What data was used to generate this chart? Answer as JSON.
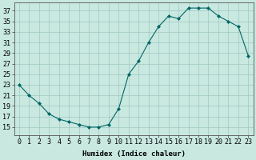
{
  "x": [
    0,
    1,
    2,
    3,
    4,
    5,
    6,
    7,
    8,
    9,
    10,
    11,
    12,
    13,
    14,
    15,
    16,
    17,
    18,
    19,
    20,
    21,
    22,
    23
  ],
  "y": [
    23,
    21,
    19.5,
    17.5,
    16.5,
    16,
    15.5,
    15,
    15,
    15.5,
    18.5,
    25,
    27.5,
    31,
    34,
    36,
    35.5,
    37.5,
    37.5,
    37.5,
    36,
    35,
    34,
    28.5
  ],
  "line_color": "#006666",
  "marker_color": "#006666",
  "bg_color": "#c8e8e0",
  "grid_color": "#a0c8c0",
  "xlabel": "Humidex (Indice chaleur)",
  "ylabel_ticks": [
    15,
    17,
    19,
    21,
    23,
    25,
    27,
    29,
    31,
    33,
    35,
    37
  ],
  "ylim": [
    13.5,
    38.5
  ],
  "xlim": [
    -0.5,
    23.5
  ],
  "xtick_labels": [
    "0",
    "1",
    "2",
    "3",
    "4",
    "5",
    "6",
    "7",
    "8",
    "9",
    "1011",
    "1213",
    "1415",
    "1617",
    "1819",
    "2021",
    "2223"
  ],
  "label_fontsize": 6.5,
  "tick_fontsize": 6.0
}
